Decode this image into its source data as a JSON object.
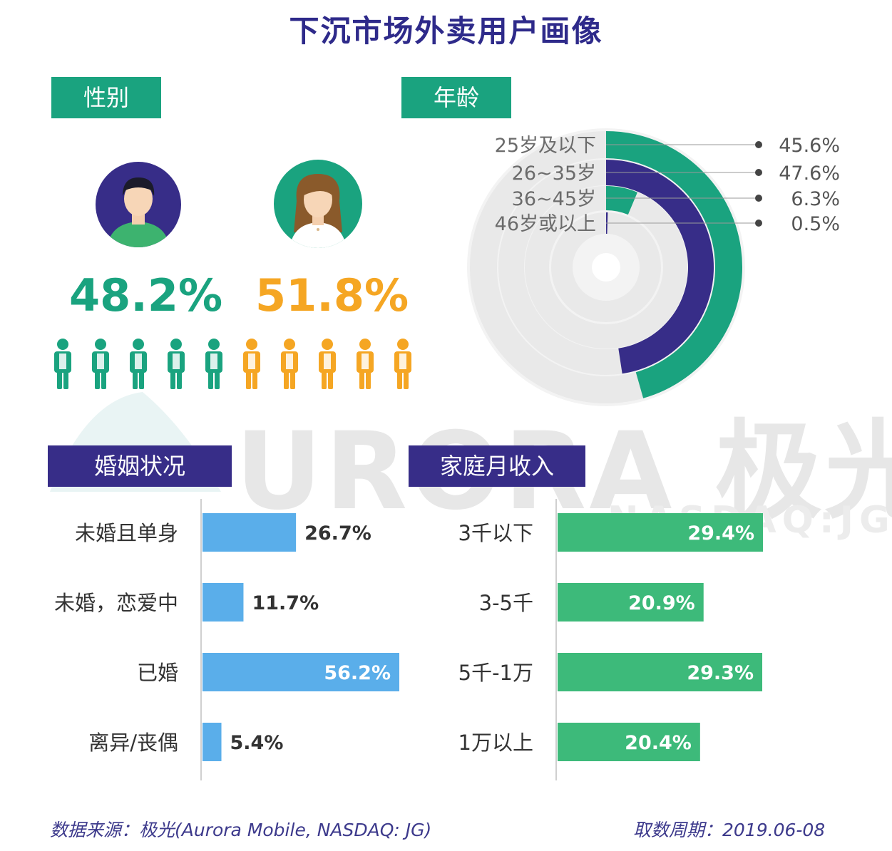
{
  "title": "下沉市场外卖用户画像",
  "colors": {
    "green": "#1aa37f",
    "purple": "#372d88",
    "orange": "#f5a623",
    "blue": "#5aaeea",
    "income_green": "#3dba7a",
    "title": "#2e2a8a"
  },
  "watermark": {
    "brand": "URORA 极光",
    "ticker": "NASDAQ:JG"
  },
  "sections": {
    "gender": "性别",
    "age": "年龄",
    "marital": "婚姻状况",
    "income": "家庭月收入"
  },
  "gender": {
    "male_icon": "male-avatar-icon",
    "female_icon": "female-avatar-icon",
    "male_pct": "48.2%",
    "female_pct": "51.8%",
    "person_icons_total": 10,
    "male_icons": 5
  },
  "footer": {
    "source": "数据来源：极光(Aurora Mobile, NASDAQ: JG)",
    "period": "取数周期：2019.06-08"
  },
  "chart_data": [
    {
      "type": "pie",
      "variant": "radial-bar",
      "title": "年龄",
      "categories": [
        "25岁及以下",
        "26~35岁",
        "36~45岁",
        "46岁或以上"
      ],
      "values": [
        45.6,
        47.6,
        6.3,
        0.5
      ],
      "labels": [
        "45.6%",
        "47.6%",
        "6.3%",
        "0.5%"
      ],
      "max": 100,
      "colors": [
        "#1aa37f",
        "#372d88",
        "#1aa37f",
        "#372d88"
      ]
    },
    {
      "type": "bar",
      "orientation": "horizontal",
      "title": "婚姻状况",
      "categories": [
        "未婚且单身",
        "未婚，恋爱中",
        "已婚",
        "离异/丧偶"
      ],
      "values": [
        26.7,
        11.7,
        56.2,
        5.4
      ],
      "labels": [
        "26.7%",
        "11.7%",
        "56.2%",
        "5.4%"
      ],
      "xlim": [
        0,
        56.2
      ],
      "color": "#5aaeea"
    },
    {
      "type": "bar",
      "orientation": "horizontal",
      "title": "家庭月收入",
      "categories": [
        "3千以下",
        "3-5千",
        "5千-1万",
        "1万以上"
      ],
      "values": [
        29.4,
        20.9,
        29.3,
        20.4
      ],
      "labels": [
        "29.4%",
        "20.9%",
        "29.3%",
        "20.4%"
      ],
      "xlim": [
        0,
        29.4
      ],
      "color": "#3dba7a"
    }
  ]
}
